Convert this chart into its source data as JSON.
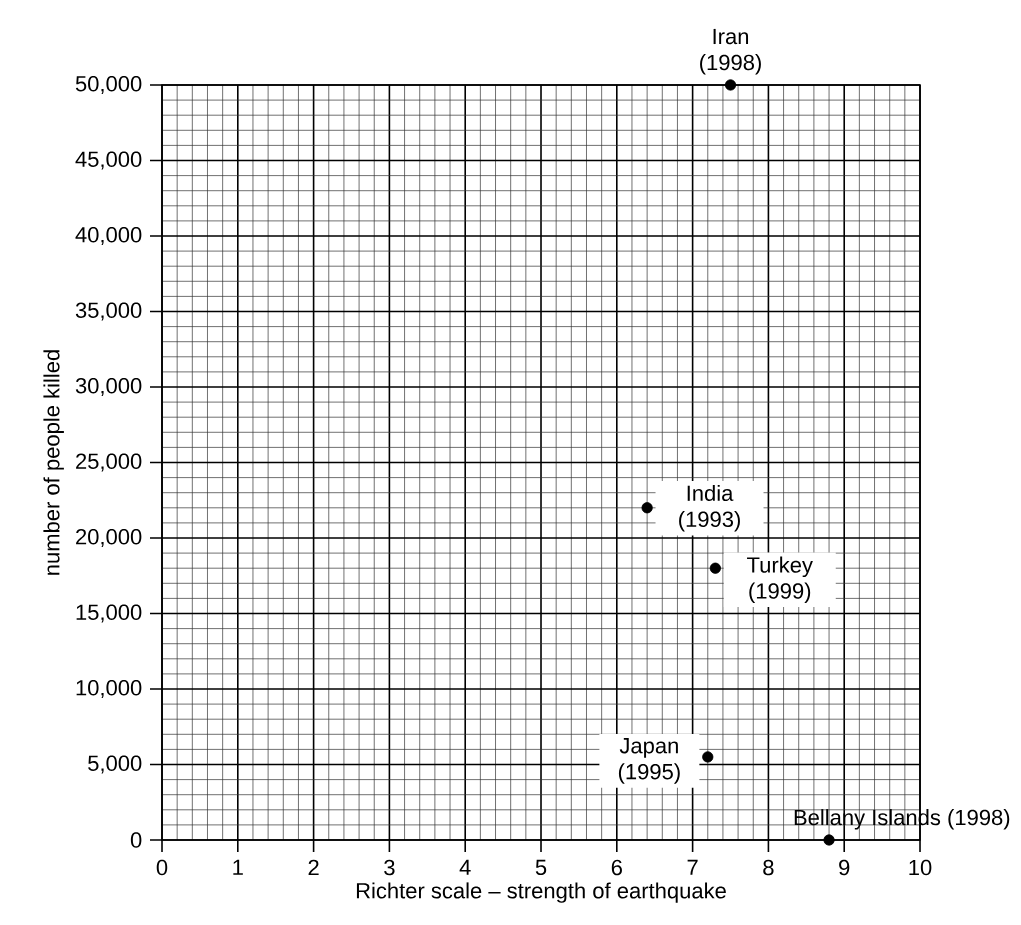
{
  "chart_data": {
    "type": "scatter",
    "xlabel": "Richter scale – strength of earthquake",
    "ylabel": "number of people killed",
    "x": [
      7.5,
      6.4,
      7.3,
      7.2,
      8.8
    ],
    "values": [
      50000,
      22000,
      18000,
      5500,
      0
    ],
    "color": "#000000",
    "marker": "circle",
    "grid": true,
    "xlim": [
      0,
      10
    ],
    "xticks": [
      0,
      1,
      2,
      3,
      4,
      5,
      6,
      7,
      8,
      9,
      10
    ],
    "ylim": [
      0,
      50000
    ],
    "yticks": [
      {
        "value": 0,
        "label": "0"
      },
      {
        "value": 5000,
        "label": "5,000"
      },
      {
        "value": 10000,
        "label": "10,000"
      },
      {
        "value": 15000,
        "label": "15,000"
      },
      {
        "value": 20000,
        "label": "20,000"
      },
      {
        "value": 25000,
        "label": "25,000"
      },
      {
        "value": 30000,
        "label": "30,000"
      },
      {
        "value": 35000,
        "label": "35,000"
      },
      {
        "value": 40000,
        "label": "40,000"
      },
      {
        "value": 45000,
        "label": "45,000"
      },
      {
        "value": 50000,
        "label": "50,000"
      }
    ],
    "annotations": [
      {
        "text": "Iran (1998)",
        "x": 7.5,
        "y": 50000
      },
      {
        "text": "India (1993)",
        "x": 6.4,
        "y": 22000
      },
      {
        "text": "Turkey (1999)",
        "x": 7.3,
        "y": 18000
      },
      {
        "text": "Japan (1995)",
        "x": 7.2,
        "y": 5500
      },
      {
        "text": "Bellany Islands (1998)",
        "x": 8.8,
        "y": 0
      }
    ]
  }
}
